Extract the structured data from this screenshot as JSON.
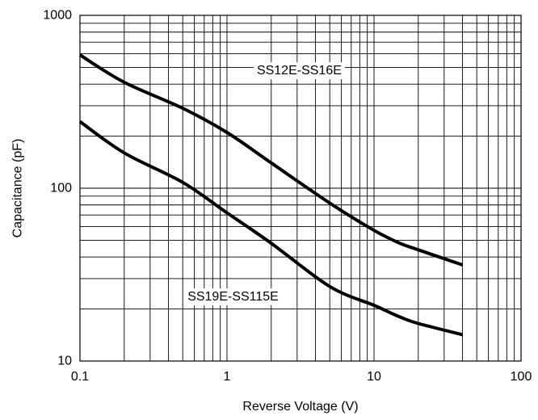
{
  "chart_data": {
    "type": "line",
    "xscale": "log",
    "yscale": "log",
    "xlim": [
      0.1,
      100
    ],
    "ylim": [
      10,
      1000
    ],
    "xlabel": "Reverse Voltage (V)",
    "ylabel": "Capacitance (pF)",
    "grid": true,
    "x_ticks": [
      "0.1",
      "1",
      "10",
      "100"
    ],
    "y_ticks": [
      "10",
      "100",
      "1000"
    ],
    "series": [
      {
        "name": "SS12E-SS16E",
        "x": [
          0.1,
          0.2,
          0.5,
          1,
          2,
          5,
          10,
          15,
          20,
          40
        ],
        "y": [
          590,
          410,
          290,
          210,
          140,
          82,
          57,
          48,
          44,
          36
        ]
      },
      {
        "name": "SS19E-SS115E",
        "x": [
          0.1,
          0.2,
          0.5,
          1,
          2,
          5,
          10,
          15,
          20,
          40
        ],
        "y": [
          243,
          160,
          108,
          72,
          48,
          27,
          21,
          18,
          16.5,
          14.2
        ]
      }
    ],
    "annotations": [
      {
        "text": "SS12E-SS16E",
        "x": 3.1,
        "y": 478
      },
      {
        "text": "SS19E-SS115E",
        "x": 1.1,
        "y": 23.5
      }
    ]
  }
}
